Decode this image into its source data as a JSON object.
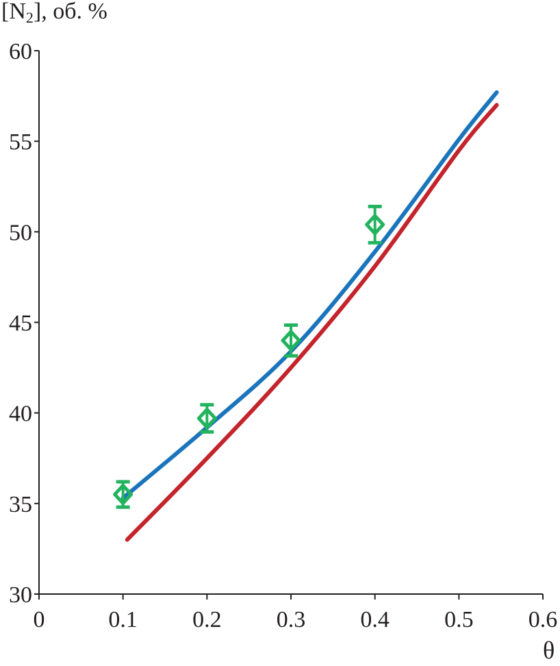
{
  "chart_data": {
    "type": "line",
    "ylabel_main": "[N",
    "ylabel_sub": "2",
    "ylabel_rest": "], об. %",
    "xlabel": "θ",
    "xlim": [
      0,
      0.6
    ],
    "ylim": [
      30,
      60
    ],
    "xticks": [
      "0",
      "0.1",
      "0.2",
      "0.3",
      "0.4",
      "0.5",
      "0.6"
    ],
    "yticks": [
      "30",
      "35",
      "40",
      "45",
      "50",
      "55",
      "60"
    ],
    "grid": false,
    "legend": "none",
    "series": [
      {
        "type": "line",
        "color": "#1b75bc",
        "x": [
          0.1,
          0.2,
          0.3,
          0.4,
          0.5,
          0.545
        ],
        "y": [
          35.3,
          39.2,
          43.4,
          48.9,
          55.1,
          57.7
        ]
      },
      {
        "type": "line",
        "color": "#c4242b",
        "x": [
          0.105,
          0.2,
          0.3,
          0.4,
          0.5,
          0.545
        ],
        "y": [
          33.0,
          37.5,
          42.5,
          48.1,
          54.5,
          57.0
        ]
      },
      {
        "type": "scatter",
        "marker": "diamond",
        "color": "#22b35e",
        "x": [
          0.1,
          0.2,
          0.3,
          0.4
        ],
        "y": [
          35.5,
          39.7,
          44.0,
          50.4
        ],
        "yerr": [
          0.7,
          0.75,
          0.85,
          1.0
        ]
      }
    ]
  }
}
